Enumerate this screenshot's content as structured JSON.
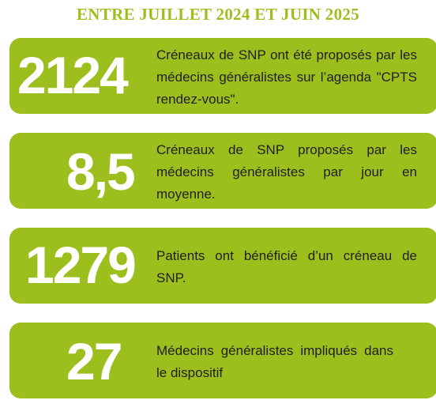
{
  "header": {
    "title": "ENTRE JUILLET 2024 ET JUIN 2025"
  },
  "stats": [
    {
      "value": "2124",
      "description": "Créneaux de SNP ont été proposés par les médecins généralistes sur l’agenda \"CPTS rendez-vous\"."
    },
    {
      "value": "8,5",
      "description": "Créneaux de SNP proposés par les médecins généralistes par jour en moyenne."
    },
    {
      "value": "1279",
      "description": "Patients ont bénéficié d’un créneau de SNP."
    },
    {
      "value": "27",
      "description": "Médecins généralistes impliqués dans le dispositif"
    }
  ],
  "colors": {
    "accent": "#9cbf1e",
    "number_text": "#ffffff",
    "body_text": "#1f1f1f"
  }
}
